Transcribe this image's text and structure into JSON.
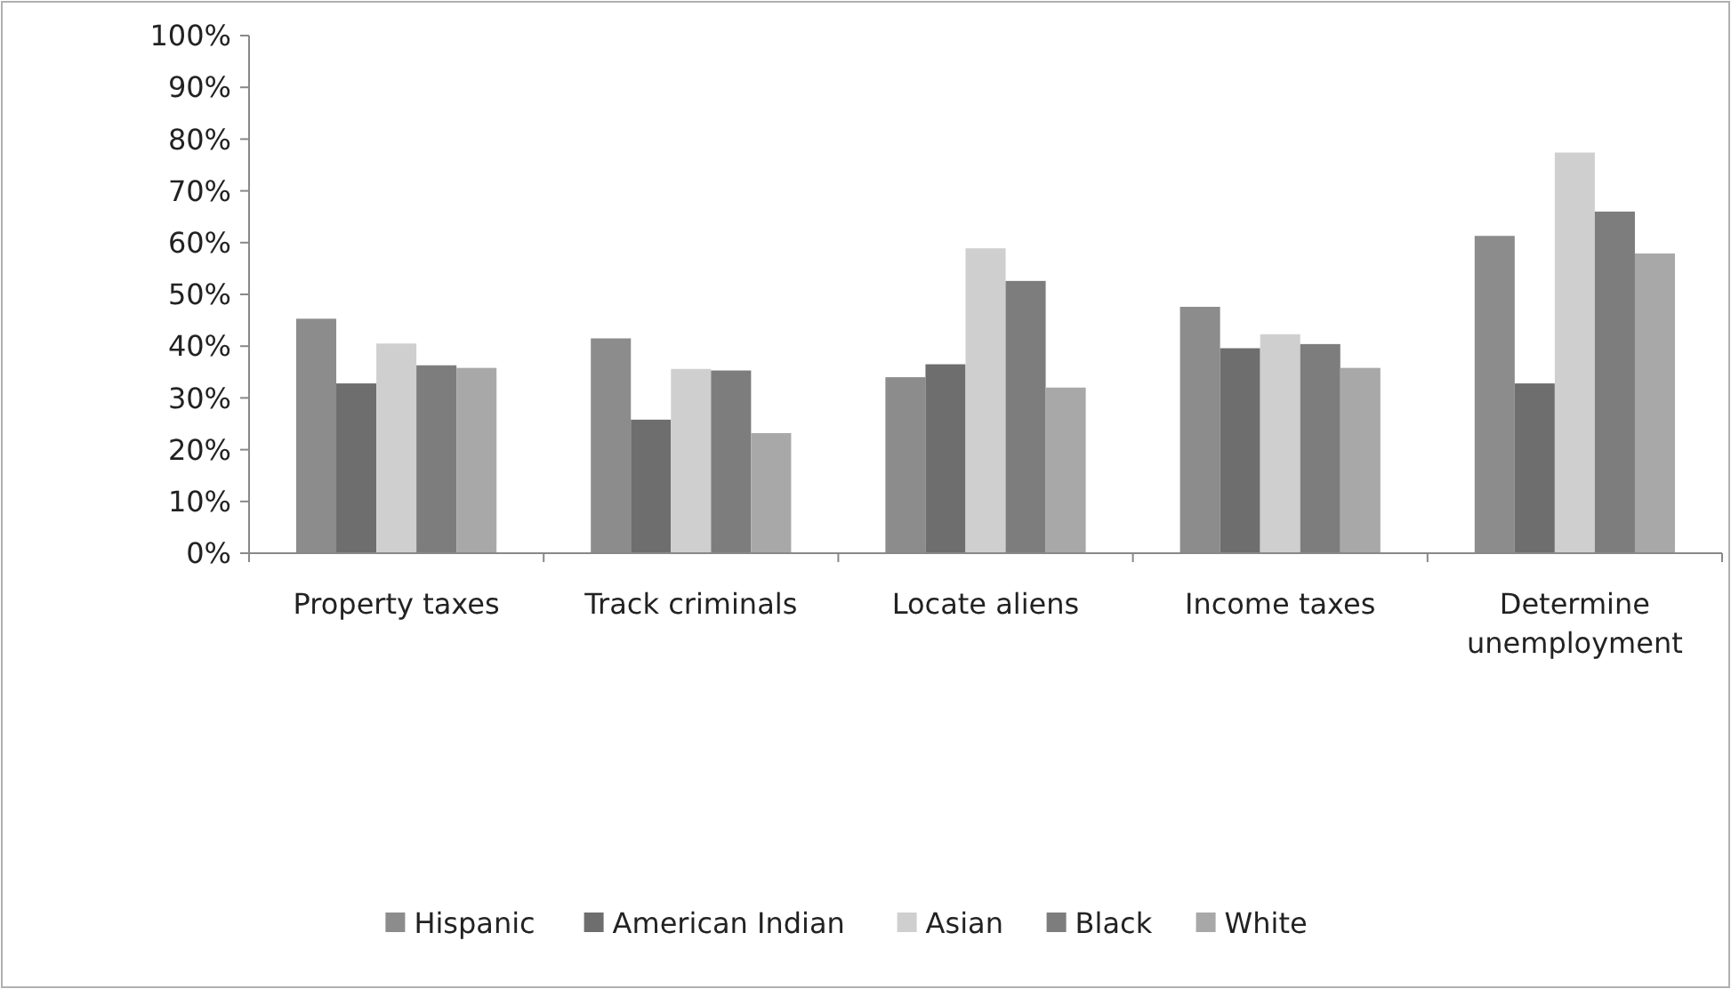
{
  "chart_data": {
    "type": "bar",
    "categories": [
      "Property taxes",
      "Track criminals",
      "Locate aliens",
      "Income taxes",
      "Determine unemployment"
    ],
    "series": [
      {
        "name": "Hispanic",
        "color": "#8c8c8c",
        "values": [
          45.3,
          41.5,
          34,
          47.6,
          61.3
        ]
      },
      {
        "name": "American Indian",
        "color": "#6e6e6e",
        "values": [
          32.8,
          25.8,
          36.5,
          39.6,
          32.8
        ]
      },
      {
        "name": "Asian",
        "color": "#cfcfcf",
        "values": [
          40.5,
          35.6,
          58.9,
          42.3,
          77.4
        ]
      },
      {
        "name": "Black",
        "color": "#7d7d7d",
        "values": [
          36.3,
          35.3,
          52.6,
          40.4,
          66
        ]
      },
      {
        "name": "White",
        "color": "#a8a8a8",
        "values": [
          35.8,
          23.2,
          32,
          35.8,
          57.9
        ]
      }
    ],
    "ylim": [
      0,
      100
    ],
    "yticks": [
      {
        "value": 0,
        "label": "0%"
      },
      {
        "value": 10,
        "label": "10%"
      },
      {
        "value": 20,
        "label": "20%"
      },
      {
        "value": 30,
        "label": "30%"
      },
      {
        "value": 40,
        "label": "40%"
      },
      {
        "value": 50,
        "label": "50%"
      },
      {
        "value": 60,
        "label": "60%"
      },
      {
        "value": 70,
        "label": "70%"
      },
      {
        "value": 80,
        "label": "80%"
      },
      {
        "value": 90,
        "label": "90%"
      },
      {
        "value": 100,
        "label": "100%"
      }
    ],
    "grid": false,
    "legend": "bottom"
  }
}
